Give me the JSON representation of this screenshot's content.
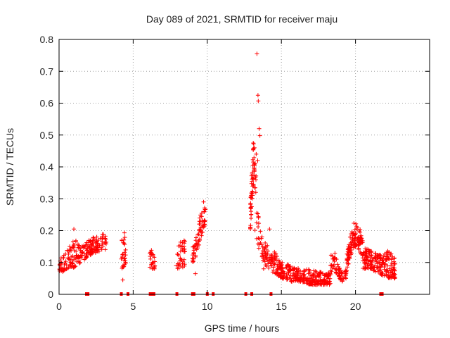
{
  "chart_data": {
    "type": "scatter",
    "title": "Day 089 of 2021, SRMTID for receiver maju",
    "xlabel": "GPS time / hours",
    "ylabel": "SRMTID / TECUs",
    "xlim": [
      0,
      25
    ],
    "ylim": [
      0,
      0.8
    ],
    "x_ticks": [
      0,
      5,
      10,
      15,
      20
    ],
    "y_ticks": [
      0,
      0.1,
      0.2,
      0.3,
      0.4,
      0.5,
      0.6,
      0.7,
      0.8
    ],
    "grid": true,
    "marker": "+",
    "colors": {
      "series": "#ff0000",
      "grid": "#a0a0a0",
      "frame": "#000000"
    },
    "series": [
      {
        "name": "SRMTID",
        "segments": [
          {
            "x0": 0.0,
            "x1": 3.2,
            "lo": [
              0.07,
              0.07,
              0.08,
              0.08,
              0.09,
              0.1,
              0.11,
              0.12,
              0.13,
              0.13,
              0.14,
              0.14
            ],
            "hi": [
              0.11,
              0.12,
              0.15,
              0.17,
              0.17,
              0.15,
              0.16,
              0.17,
              0.18,
              0.18,
              0.19,
              0.2
            ],
            "n": 220
          },
          {
            "x0": 4.2,
            "x1": 4.5,
            "lo": [
              0.08,
              0.09
            ],
            "hi": [
              0.19,
              0.21
            ],
            "n": 28
          },
          {
            "x0": 6.1,
            "x1": 6.5,
            "lo": [
              0.08,
              0.08
            ],
            "hi": [
              0.15,
              0.12
            ],
            "n": 26
          },
          {
            "x0": 7.9,
            "x1": 8.5,
            "lo": [
              0.07,
              0.09
            ],
            "hi": [
              0.16,
              0.17
            ],
            "n": 40
          },
          {
            "x0": 9.0,
            "x1": 9.9,
            "lo": [
              0.09,
              0.13,
              0.18,
              0.23
            ],
            "hi": [
              0.15,
              0.2,
              0.27,
              0.29
            ],
            "n": 70
          },
          {
            "x0": 12.9,
            "x1": 13.2,
            "lo": [
              0.2,
              0.27,
              0.34,
              0.37
            ],
            "hi": [
              0.3,
              0.4,
              0.47,
              0.5
            ],
            "n": 55
          },
          {
            "x0": 13.2,
            "x1": 14.4,
            "lo": [
              0.2,
              0.15,
              0.11,
              0.09,
              0.08,
              0.09
            ],
            "hi": [
              0.5,
              0.25,
              0.19,
              0.17,
              0.15,
              0.12
            ],
            "n": 80
          },
          {
            "x0": 14.4,
            "x1": 18.3,
            "lo": [
              0.07,
              0.05,
              0.04,
              0.04,
              0.03,
              0.03,
              0.03
            ],
            "hi": [
              0.15,
              0.1,
              0.09,
              0.08,
              0.08,
              0.07,
              0.07
            ],
            "n": 320
          },
          {
            "x0": 18.3,
            "x1": 19.4,
            "lo": [
              0.06,
              0.08,
              0.05,
              0.04,
              0.05
            ],
            "hi": [
              0.12,
              0.14,
              0.09,
              0.07,
              0.08
            ],
            "n": 70
          },
          {
            "x0": 19.4,
            "x1": 20.5,
            "lo": [
              0.07,
              0.12,
              0.15,
              0.14,
              0.11
            ],
            "hi": [
              0.13,
              0.2,
              0.23,
              0.22,
              0.18
            ],
            "n": 110
          },
          {
            "x0": 20.5,
            "x1": 22.7,
            "lo": [
              0.08,
              0.08,
              0.07,
              0.06,
              0.05,
              0.05
            ],
            "hi": [
              0.15,
              0.14,
              0.13,
              0.12,
              0.14,
              0.11
            ],
            "n": 200
          }
        ],
        "outliers": [
          [
            13.35,
            0.755
          ],
          [
            13.42,
            0.625
          ],
          [
            13.44,
            0.607
          ],
          [
            13.5,
            0.52
          ],
          [
            13.55,
            0.498
          ],
          [
            13.3,
            0.44
          ],
          [
            13.4,
            0.42
          ],
          [
            13.1,
            0.475
          ],
          [
            4.3,
            0.045
          ],
          [
            1.0,
            0.205
          ],
          [
            9.2,
            0.065
          ],
          [
            14.2,
            0.205
          ],
          [
            9.75,
            0.29
          ],
          [
            13.8,
            0.08
          ]
        ],
        "gaps_y": 0,
        "gap_marks_x": [
          1.85,
          1.95,
          4.2,
          4.65,
          6.15,
          6.3,
          6.4,
          7.95,
          9.0,
          9.1,
          10.0,
          10.4,
          12.6,
          13.0,
          14.3,
          21.7,
          21.8
        ]
      }
    ]
  }
}
